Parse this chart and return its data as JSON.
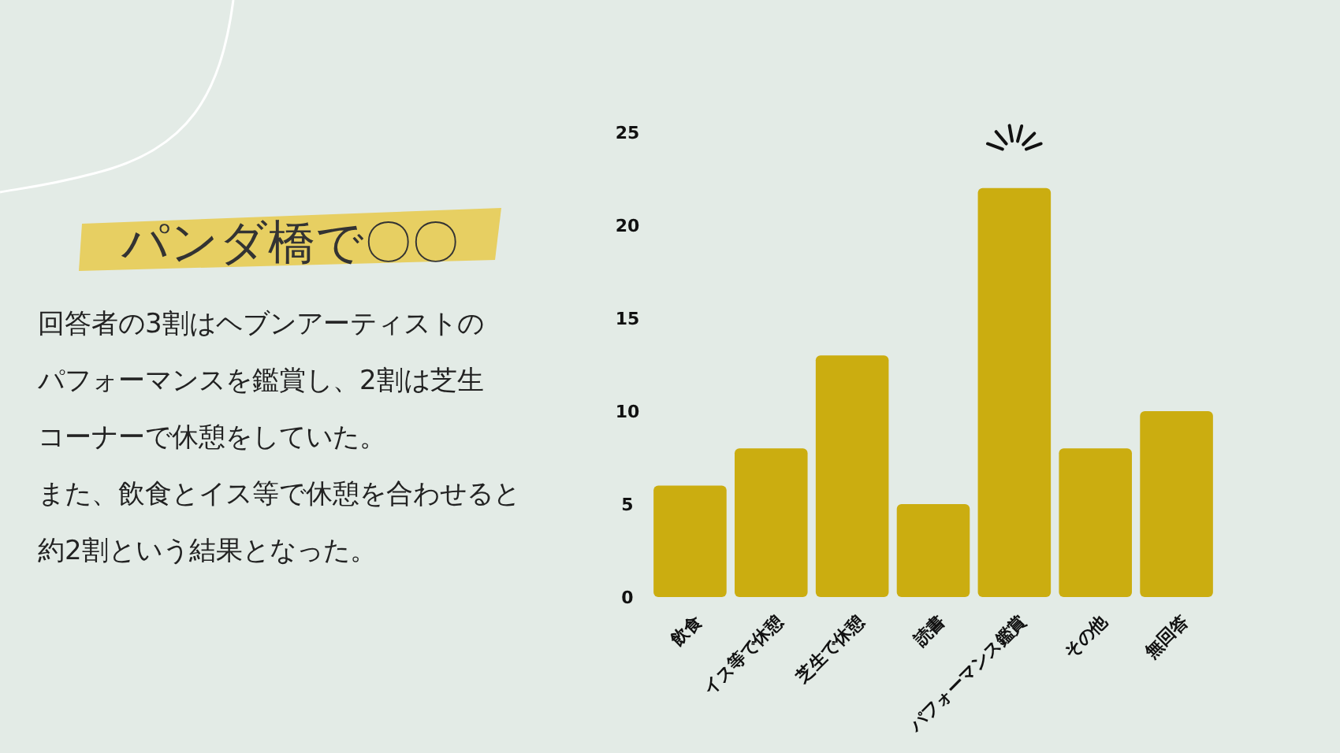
{
  "chart_data": {
    "type": "bar",
    "title": "パンダ橋で〇〇",
    "annotations": [
      "回答者の3割はヘブンアーティストの",
      "パフォーマンスを鑑賞し、2割は芝生",
      "コーナーで休憩をしていた。",
      "また、飲食とイス等で休憩を合わせると",
      "約2割という結果となった。"
    ],
    "categories": [
      "飲食",
      "イス等で休憩",
      "芝生で休憩",
      "読書",
      "パフォーマンス鑑賞",
      "その他",
      "無回答"
    ],
    "values": [
      6,
      8,
      13,
      5,
      22,
      8,
      10
    ],
    "color": "#cbad10",
    "ylim": [
      0,
      25
    ],
    "yticks": [
      0,
      5,
      10,
      15,
      20,
      25
    ],
    "grid": false
  }
}
